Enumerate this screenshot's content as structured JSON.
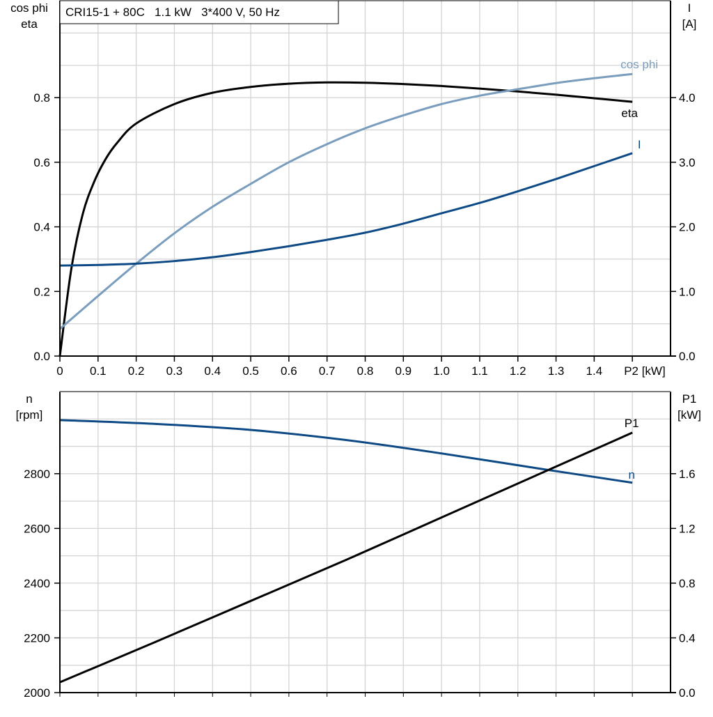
{
  "chart_data": [
    {
      "type": "line",
      "title": "CRI15-1 + 80C   1.1 kW   3*400 V, 50 Hz",
      "xlabel": "P2 [kW]",
      "x_tick_labels": [
        "0",
        "0.1",
        "0.2",
        "0.3",
        "0.4",
        "0.5",
        "0.6",
        "0.7",
        "0.8",
        "0.9",
        "1.0",
        "1.1",
        "1.2",
        "1.3",
        "1.4",
        "P2 [kW]"
      ],
      "xlim": [
        0,
        1.6
      ],
      "ylabel_left": [
        "cos phi",
        "eta"
      ],
      "ylim_left": [
        0,
        1.1
      ],
      "y_ticks_left": [
        "0.0",
        "0.2",
        "0.4",
        "0.6",
        "0.8"
      ],
      "ylabel_right": [
        "I",
        "[A]"
      ],
      "ylim_right": [
        0,
        5.5
      ],
      "y_ticks_right": [
        "0.0",
        "1.0",
        "2.0",
        "3.0",
        "4.0"
      ],
      "grid": true,
      "series": [
        {
          "name": "eta",
          "axis": "left",
          "color": "#000000",
          "x": [
            0,
            0.03,
            0.06,
            0.09,
            0.12,
            0.15,
            0.2,
            0.3,
            0.4,
            0.5,
            0.6,
            0.7,
            0.8,
            0.9,
            1.0,
            1.1,
            1.2,
            1.3,
            1.4,
            1.5
          ],
          "y": [
            0,
            0.27,
            0.44,
            0.54,
            0.61,
            0.66,
            0.72,
            0.78,
            0.815,
            0.833,
            0.843,
            0.847,
            0.846,
            0.842,
            0.836,
            0.828,
            0.819,
            0.809,
            0.798,
            0.787
          ]
        },
        {
          "name": "cos phi",
          "axis": "left",
          "color": "#7a9dbe",
          "x": [
            0,
            0.1,
            0.2,
            0.3,
            0.4,
            0.5,
            0.6,
            0.7,
            0.8,
            0.9,
            1.0,
            1.1,
            1.2,
            1.3,
            1.4,
            1.5
          ],
          "y": [
            0.084,
            0.186,
            0.286,
            0.38,
            0.462,
            0.533,
            0.6,
            0.656,
            0.705,
            0.745,
            0.78,
            0.806,
            0.826,
            0.845,
            0.86,
            0.873
          ]
        },
        {
          "name": "I",
          "axis": "right",
          "color": "#0d4a85",
          "x": [
            0,
            0.1,
            0.2,
            0.3,
            0.4,
            0.5,
            0.6,
            0.7,
            0.8,
            0.9,
            1.0,
            1.1,
            1.2,
            1.3,
            1.4,
            1.5
          ],
          "y": [
            1.4,
            1.41,
            1.43,
            1.47,
            1.53,
            1.61,
            1.7,
            1.8,
            1.91,
            2.05,
            2.21,
            2.37,
            2.55,
            2.74,
            2.94,
            3.14
          ]
        }
      ]
    },
    {
      "type": "line",
      "xlim": [
        0,
        1.6
      ],
      "ylabel_left": [
        "n",
        "[rpm]"
      ],
      "ylim_left": [
        2000,
        3100
      ],
      "y_ticks_left": [
        "2000",
        "2200",
        "2400",
        "2600",
        "2800"
      ],
      "ylabel_right": [
        "P1",
        "[kW]"
      ],
      "ylim_right": [
        0,
        2.2
      ],
      "y_ticks_right": [
        "0.0",
        "0.4",
        "0.8",
        "1.2",
        "1.6"
      ],
      "grid": true,
      "series": [
        {
          "name": "n",
          "axis": "left",
          "color": "#0d4a85",
          "x": [
            0,
            0.25,
            0.5,
            0.75,
            1.0,
            1.25,
            1.5
          ],
          "y": [
            2996,
            2982,
            2960,
            2923,
            2874,
            2820,
            2767
          ]
        },
        {
          "name": "P1",
          "axis": "right",
          "color": "#000000",
          "x": [
            0,
            0.25,
            0.5,
            0.75,
            1.0,
            1.25,
            1.5
          ],
          "y": [
            0.076,
            0.37,
            0.67,
            0.97,
            1.28,
            1.59,
            1.9
          ]
        }
      ]
    }
  ]
}
